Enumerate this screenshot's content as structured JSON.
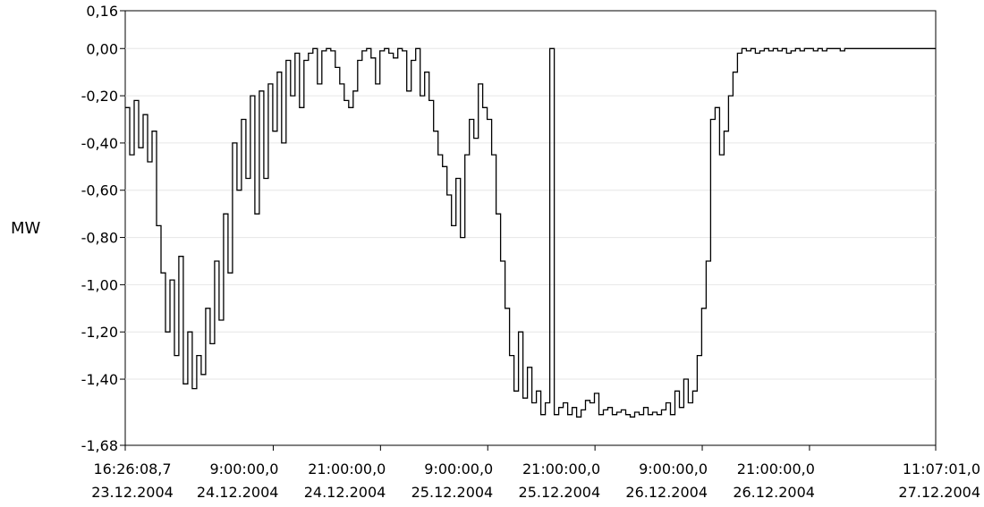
{
  "chart_data": {
    "type": "line",
    "title": "",
    "xlabel": "",
    "ylabel": "MW",
    "ylim": [
      -1.68,
      0.16
    ],
    "grid": true,
    "y_ticks": [
      "0,16",
      "0,00",
      "-0,20",
      "-0,40",
      "-0,60",
      "-0,80",
      "-1,00",
      "-1,20",
      "-1,40",
      "-1,68"
    ],
    "y_tick_values": [
      0.16,
      0.0,
      -0.2,
      -0.4,
      -0.6,
      -0.8,
      -1.0,
      -1.2,
      -1.4,
      -1.68
    ],
    "x_ticks": [
      {
        "time": "16:26:08,7",
        "date": "23.12.2004",
        "hours": 0.0
      },
      {
        "time": "9:00:00,0",
        "date": "24.12.2004",
        "hours": 16.56
      },
      {
        "time": "21:00:00,0",
        "date": "24.12.2004",
        "hours": 28.56
      },
      {
        "time": "9:00:00,0",
        "date": "25.12.2004",
        "hours": 40.56
      },
      {
        "time": "21:00:00,0",
        "date": "25.12.2004",
        "hours": 52.56
      },
      {
        "time": "9:00:00,0",
        "date": "26.12.2004",
        "hours": 64.56
      },
      {
        "time": "21:00:00,0",
        "date": "26.12.2004",
        "hours": 76.56
      },
      {
        "time": "11:07:01,0",
        "date": "27.12.2004",
        "hours": 90.68
      }
    ],
    "series": [
      {
        "x": [
          0.0,
          0.5,
          1.0,
          1.5,
          2.0,
          2.5,
          3.0,
          3.5,
          4.0,
          4.5,
          5.0,
          5.5,
          6.0,
          6.5,
          7.0,
          7.5,
          8.0,
          8.5,
          9.0,
          9.5,
          10.0,
          10.5,
          11.0,
          11.5,
          12.0,
          12.5,
          13.0,
          13.5,
          14.0,
          14.5,
          15.0,
          15.5,
          16.0,
          16.5,
          17.0,
          17.5,
          18.0,
          18.5,
          19.0,
          19.5,
          20.0,
          20.5,
          21.0,
          21.5,
          22.0,
          22.5,
          23.0,
          23.5,
          24.0,
          24.5,
          25.0,
          25.5,
          26.0,
          26.5,
          27.0,
          27.5,
          28.0,
          28.5,
          29.0,
          29.5,
          30.0,
          30.5,
          31.0,
          31.5,
          32.0,
          32.5,
          33.0,
          33.5,
          34.0,
          34.5,
          35.0,
          35.5,
          36.0,
          36.5,
          37.0,
          37.5,
          38.0,
          38.5,
          39.0,
          39.5,
          40.0,
          40.5,
          41.0,
          41.5,
          42.0,
          42.5,
          43.0,
          43.5,
          44.0,
          44.5,
          45.0,
          45.5,
          46.0,
          46.5,
          47.0,
          47.5,
          48.0,
          48.5,
          49.0,
          49.5,
          50.0,
          50.5,
          51.0,
          51.5,
          52.0,
          52.5,
          53.0,
          53.5,
          54.0,
          54.5,
          55.0,
          55.5,
          56.0,
          56.5,
          57.0,
          57.5,
          58.0,
          58.5,
          59.0,
          59.5,
          60.0,
          60.5,
          61.0,
          61.5,
          62.0,
          62.5,
          63.0,
          63.5,
          64.0,
          64.5,
          65.0,
          65.5,
          66.0,
          66.5,
          67.0,
          67.5,
          68.0,
          68.5,
          69.0,
          69.5,
          70.0,
          70.5,
          71.0,
          71.5,
          72.0,
          72.5,
          73.0,
          73.5,
          74.0,
          74.5,
          75.0,
          75.5,
          76.0,
          76.5,
          77.0,
          77.5,
          78.0,
          78.5,
          79.0,
          79.5,
          80.0,
          80.5,
          81.0,
          81.5,
          82.0,
          82.5,
          83.0,
          83.5,
          84.0,
          84.5,
          85.0,
          85.5,
          86.0,
          86.5,
          87.0,
          87.5,
          88.0,
          88.5,
          89.0,
          89.5,
          90.0,
          90.68
        ],
        "values": [
          -0.25,
          -0.45,
          -0.22,
          -0.42,
          -0.28,
          -0.48,
          -0.35,
          -0.75,
          -0.95,
          -1.2,
          -0.98,
          -1.3,
          -0.88,
          -1.42,
          -1.2,
          -1.44,
          -1.3,
          -1.38,
          -1.1,
          -1.25,
          -0.9,
          -1.15,
          -0.7,
          -0.95,
          -0.4,
          -0.6,
          -0.3,
          -0.55,
          -0.2,
          -0.7,
          -0.18,
          -0.55,
          -0.15,
          -0.35,
          -0.1,
          -0.4,
          -0.05,
          -0.2,
          -0.02,
          -0.25,
          -0.05,
          -0.02,
          0.0,
          -0.15,
          -0.01,
          0.0,
          -0.01,
          -0.08,
          -0.15,
          -0.22,
          -0.25,
          -0.18,
          -0.05,
          -0.01,
          0.0,
          -0.04,
          -0.15,
          -0.01,
          0.0,
          -0.02,
          -0.04,
          -0.0,
          -0.01,
          -0.18,
          -0.05,
          0.0,
          -0.2,
          -0.1,
          -0.22,
          -0.35,
          -0.45,
          -0.5,
          -0.62,
          -0.75,
          -0.55,
          -0.8,
          -0.45,
          -0.3,
          -0.38,
          -0.15,
          -0.25,
          -0.3,
          -0.45,
          -0.7,
          -0.9,
          -1.1,
          -1.3,
          -1.45,
          -1.2,
          -1.48,
          -1.35,
          -1.5,
          -1.45,
          -1.55,
          -1.5,
          0.0,
          -1.55,
          -1.52,
          -1.5,
          -1.55,
          -1.52,
          -1.56,
          -1.53,
          -1.49,
          -1.5,
          -1.46,
          -1.55,
          -1.53,
          -1.52,
          -1.55,
          -1.54,
          -1.53,
          -1.55,
          -1.56,
          -1.54,
          -1.55,
          -1.52,
          -1.55,
          -1.54,
          -1.55,
          -1.53,
          -1.5,
          -1.55,
          -1.45,
          -1.52,
          -1.4,
          -1.5,
          -1.45,
          -1.3,
          -1.1,
          -0.9,
          -0.3,
          -0.25,
          -0.45,
          -0.35,
          -0.2,
          -0.1,
          -0.02,
          0.0,
          -0.01,
          0.0,
          -0.02,
          -0.01,
          0.0,
          -0.01,
          0.0,
          -0.01,
          0.0,
          -0.02,
          -0.01,
          0.0,
          -0.01,
          0.0,
          0.0,
          -0.01,
          0.0,
          -0.01,
          0.0,
          0.0,
          0.0,
          -0.01,
          0.0,
          0.0,
          0.0,
          0.0,
          0.0,
          0.0,
          0.0,
          0.0,
          0.0,
          0.0,
          0.0,
          0.0,
          0.0,
          0.0,
          0.0,
          0.0,
          0.0,
          0.0,
          0.0,
          0.0,
          0.0
        ]
      }
    ]
  }
}
